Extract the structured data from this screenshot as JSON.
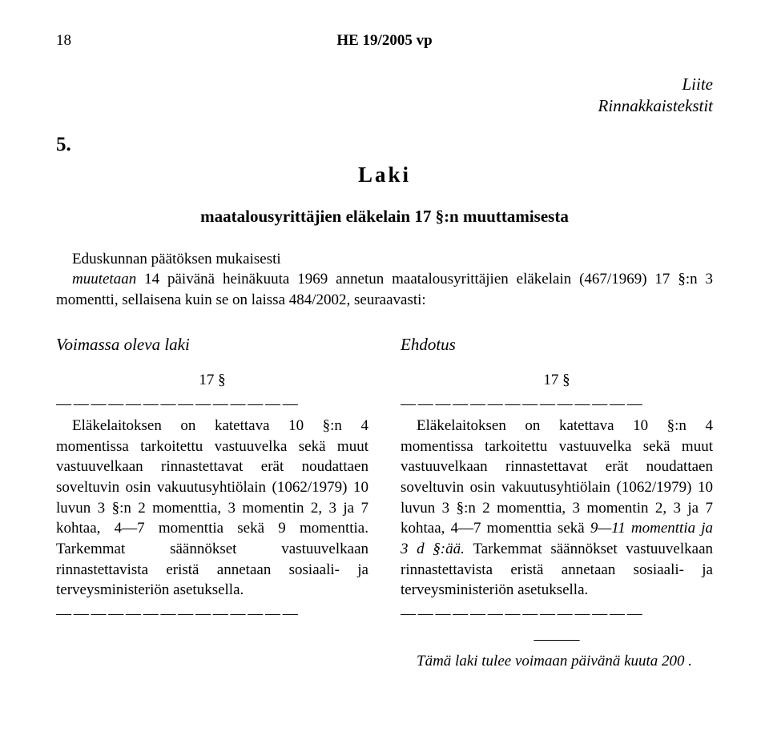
{
  "header": {
    "pageNumber": "18",
    "docRef": "HE 19/2005 vp"
  },
  "annex": {
    "line1": "Liite",
    "line2": "Rinnakkaistekstit"
  },
  "sectionNumber": "5.",
  "lawHeading": "Laki",
  "lawSubtitle": "maatalousyrittäjien eläkelain 17 §:n muuttamisesta",
  "preamble": {
    "line1": "Eduskunnan päätöksen mukaisesti",
    "line2_pre": "muutetaan ",
    "line2_ital": "14 päivänä heinäkuuta 1969 annetun maatalousyrittäjien eläkelain (467/1969) 17 §:n 3 momentti, sellaisena kuin se on laissa 484/2002, seuraavasti:"
  },
  "left": {
    "heading": "Voimassa oleva laki",
    "paraNum": "17 §",
    "dashes": "— — — — — — — — — — — — — —",
    "body": "Eläkelaitoksen on katettava 10 §:n 4 momentissa tarkoitettu vastuuvelka sekä muut vastuuvelkaan rinnastettavat erät noudattaen soveltuvin osin vakuutusyhtiölain (1062/1979) 10 luvun 3 §:n 2 momenttia, 3 momentin 2, 3 ja 7 kohtaa, 4—7 momenttia sekä 9 momenttia. Tarkemmat säännökset vastuuvelkaan rinnastettavista eristä annetaan sosiaali- ja terveysministeriön asetuksella.",
    "dashes2": "— — — — — — — — — — — — — —"
  },
  "right": {
    "heading": "Ehdotus",
    "paraNum": "17 §",
    "dashes": "— — — — — — — — — — — — — —",
    "body_pre": "Eläkelaitoksen on katettava 10 §:n 4 momentissa tarkoitettu vastuuvelka sekä muut vastuuvelkaan rinnastettavat erät noudattaen soveltuvin osin vakuutusyhtiölain (1062/1979) 10 luvun 3 §:n 2 momenttia, 3 momentin 2, 3 ja 7 kohtaa, 4—7 momenttia sekä ",
    "body_ital": "9—11 momenttia ja 3 d §:ää. ",
    "body_post": "Tarkemmat säännökset vastuuvelkaan rinnastettavista eristä annetaan sosiaali- ja terveysministeriön asetuksella.",
    "dashes2": "— — — — — — — — — — — — — —",
    "rule": "———",
    "entry_pre": "Tämä laki tulee voimaan    päivänä       kuuta 200 ."
  }
}
